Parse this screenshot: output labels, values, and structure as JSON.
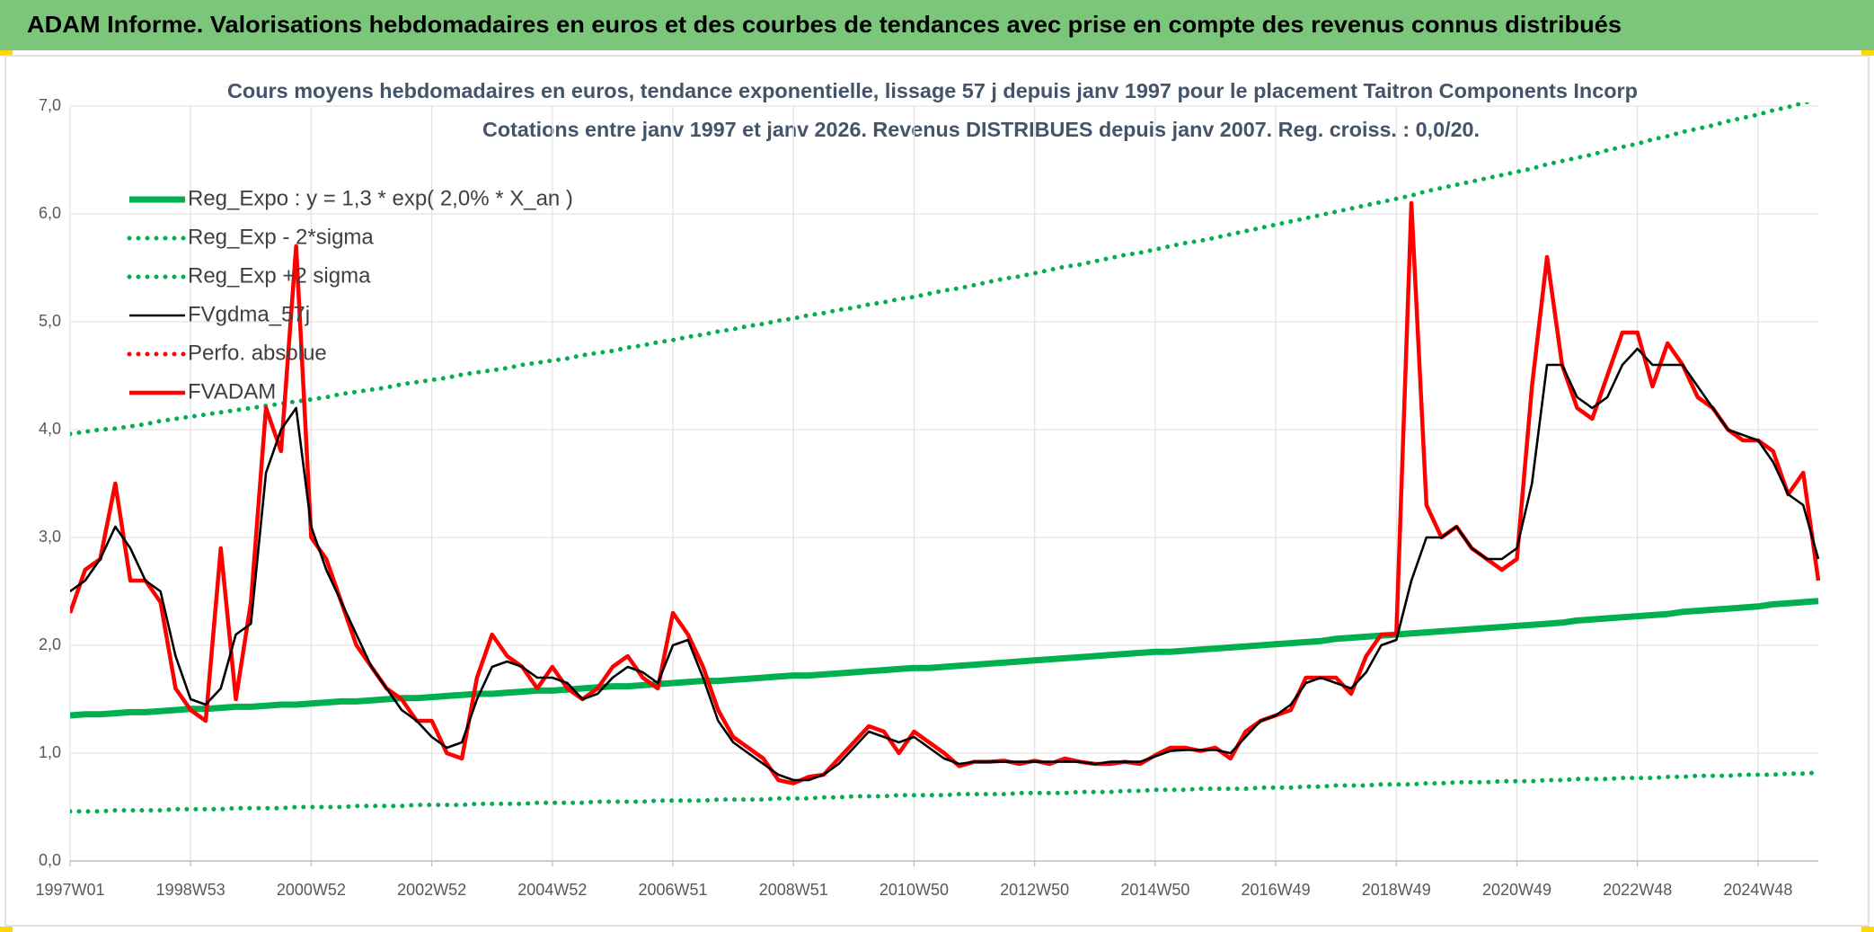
{
  "header": {
    "title": "ADAM Informe. Valorisations hebdomadaires en euros et des courbes de tendances avec prise en compte des revenus connus distribués"
  },
  "chart_data": {
    "type": "line",
    "title": "Cours moyens hebdomadaires en euros, tendance exponentielle, lissage 57 j depuis janv 1997 pour le placement Taitron Components Incorp",
    "subtitle": "Cotations entre janv 1997 et janv 2026. Revenus DISTRIBUES depuis janv 2007. Reg. croiss. : 0,0/20.",
    "grid": true,
    "legend": "upper left",
    "ylim": [
      0,
      7
    ],
    "yticks": [
      {
        "value": 0,
        "label": "0,0"
      },
      {
        "value": 1,
        "label": "1,0"
      },
      {
        "value": 2,
        "label": "2,0"
      },
      {
        "value": 3,
        "label": "3,0"
      },
      {
        "value": 4,
        "label": "4,0"
      },
      {
        "value": 5,
        "label": "5,0"
      },
      {
        "value": 6,
        "label": "6,0"
      },
      {
        "value": 7,
        "label": "7,0"
      }
    ],
    "categories": [
      "1997W01",
      null,
      null,
      null,
      null,
      null,
      null,
      null,
      "1998W53",
      null,
      null,
      null,
      null,
      null,
      null,
      null,
      "2000W52",
      null,
      null,
      null,
      null,
      null,
      null,
      null,
      "2002W52",
      null,
      null,
      null,
      null,
      null,
      null,
      null,
      "2004W52",
      null,
      null,
      null,
      null,
      null,
      null,
      null,
      "2006W51",
      null,
      null,
      null,
      null,
      null,
      null,
      null,
      "2008W51",
      null,
      null,
      null,
      null,
      null,
      null,
      null,
      "2010W50",
      null,
      null,
      null,
      null,
      null,
      null,
      null,
      "2012W50",
      null,
      null,
      null,
      null,
      null,
      null,
      null,
      "2014W50",
      null,
      null,
      null,
      null,
      null,
      null,
      null,
      "2016W49",
      null,
      null,
      null,
      null,
      null,
      null,
      null,
      "2018W49",
      null,
      null,
      null,
      null,
      null,
      null,
      null,
      "2020W49",
      null,
      null,
      null,
      null,
      null,
      null,
      null,
      "2022W48",
      null,
      null,
      null,
      null,
      null,
      null,
      null,
      "2024W48",
      null,
      null,
      null,
      null
    ],
    "series": [
      {
        "name": "Reg_Expo : y = 1,3 * exp( 2,0% *  X_an )",
        "color": "#00b050",
        "style": "solid",
        "values": [
          1.35,
          1.36,
          1.36,
          1.37,
          1.38,
          1.38,
          1.39,
          1.4,
          1.41,
          1.41,
          1.42,
          1.43,
          1.43,
          1.44,
          1.45,
          1.45,
          1.46,
          1.47,
          1.48,
          1.48,
          1.49,
          1.5,
          1.51,
          1.51,
          1.52,
          1.53,
          1.54,
          1.55,
          1.55,
          1.56,
          1.57,
          1.58,
          1.58,
          1.59,
          1.6,
          1.61,
          1.62,
          1.62,
          1.63,
          1.64,
          1.65,
          1.66,
          1.67,
          1.67,
          1.68,
          1.69,
          1.7,
          1.71,
          1.72,
          1.72,
          1.73,
          1.74,
          1.75,
          1.76,
          1.77,
          1.78,
          1.79,
          1.79,
          1.8,
          1.81,
          1.82,
          1.83,
          1.84,
          1.85,
          1.86,
          1.87,
          1.88,
          1.89,
          1.9,
          1.91,
          1.92,
          1.93,
          1.94,
          1.94,
          1.95,
          1.96,
          1.97,
          1.98,
          1.99,
          2.0,
          2.01,
          2.02,
          2.03,
          2.04,
          2.06,
          2.07,
          2.08,
          2.09,
          2.1,
          2.11,
          2.12,
          2.13,
          2.14,
          2.15,
          2.16,
          2.17,
          2.18,
          2.19,
          2.2,
          2.21,
          2.23,
          2.24,
          2.25,
          2.26,
          2.27,
          2.28,
          2.29,
          2.31,
          2.32,
          2.33,
          2.34,
          2.35,
          2.36,
          2.38,
          2.39,
          2.4,
          2.41
        ]
      },
      {
        "name": "Reg_Exp - 2*sigma",
        "color": "#00b050",
        "style": "dotted",
        "values": [
          0.46,
          0.46,
          0.46,
          0.47,
          0.47,
          0.47,
          0.47,
          0.48,
          0.48,
          0.48,
          0.48,
          0.49,
          0.49,
          0.49,
          0.49,
          0.5,
          0.5,
          0.5,
          0.5,
          0.51,
          0.51,
          0.51,
          0.51,
          0.52,
          0.52,
          0.52,
          0.52,
          0.53,
          0.53,
          0.53,
          0.53,
          0.54,
          0.54,
          0.54,
          0.54,
          0.55,
          0.55,
          0.55,
          0.55,
          0.56,
          0.56,
          0.56,
          0.56,
          0.57,
          0.57,
          0.57,
          0.57,
          0.58,
          0.58,
          0.58,
          0.59,
          0.59,
          0.6,
          0.6,
          0.6,
          0.61,
          0.61,
          0.61,
          0.61,
          0.62,
          0.62,
          0.62,
          0.62,
          0.63,
          0.63,
          0.63,
          0.63,
          0.64,
          0.64,
          0.64,
          0.65,
          0.65,
          0.66,
          0.66,
          0.66,
          0.67,
          0.67,
          0.67,
          0.67,
          0.68,
          0.68,
          0.68,
          0.69,
          0.69,
          0.7,
          0.7,
          0.7,
          0.71,
          0.71,
          0.71,
          0.72,
          0.72,
          0.73,
          0.73,
          0.73,
          0.74,
          0.74,
          0.74,
          0.75,
          0.75,
          0.76,
          0.76,
          0.76,
          0.77,
          0.77,
          0.77,
          0.78,
          0.78,
          0.79,
          0.79,
          0.79,
          0.8,
          0.8,
          0.8,
          0.81,
          0.81,
          0.82
        ]
      },
      {
        "name": "Reg_Exp +2 sigma",
        "color": "#00b050",
        "style": "dotted",
        "values": [
          3.96,
          3.98,
          4.0,
          4.01,
          4.03,
          4.05,
          4.08,
          4.1,
          4.12,
          4.14,
          4.16,
          4.18,
          4.2,
          4.22,
          4.24,
          4.26,
          4.28,
          4.3,
          4.33,
          4.35,
          4.37,
          4.39,
          4.42,
          4.44,
          4.46,
          4.48,
          4.51,
          4.53,
          4.55,
          4.57,
          4.6,
          4.62,
          4.64,
          4.66,
          4.69,
          4.71,
          4.73,
          4.76,
          4.78,
          4.81,
          4.83,
          4.86,
          4.88,
          4.91,
          4.93,
          4.96,
          4.98,
          5.01,
          5.03,
          5.06,
          5.08,
          5.11,
          5.13,
          5.16,
          5.18,
          5.21,
          5.23,
          5.26,
          5.29,
          5.31,
          5.34,
          5.37,
          5.4,
          5.42,
          5.45,
          5.48,
          5.51,
          5.53,
          5.56,
          5.59,
          5.62,
          5.64,
          5.67,
          5.7,
          5.73,
          5.75,
          5.78,
          5.81,
          5.84,
          5.87,
          5.9,
          5.93,
          5.96,
          5.99,
          6.02,
          6.05,
          6.08,
          6.11,
          6.14,
          6.17,
          6.21,
          6.24,
          6.27,
          6.3,
          6.33,
          6.36,
          6.39,
          6.42,
          6.46,
          6.49,
          6.52,
          6.55,
          6.59,
          6.62,
          6.65,
          6.69,
          6.72,
          6.76,
          6.79,
          6.82,
          6.86,
          6.89,
          6.92,
          6.96,
          6.99,
          7.03,
          7.06
        ]
      },
      {
        "name": "FVgdma_57j",
        "color": "#000000",
        "style": "solid",
        "values": [
          2.5,
          2.6,
          2.8,
          3.1,
          2.9,
          2.6,
          2.5,
          1.9,
          1.5,
          1.45,
          1.6,
          2.1,
          2.2,
          3.6,
          4.0,
          4.2,
          3.1,
          2.7,
          2.4,
          2.1,
          1.8,
          1.6,
          1.4,
          1.3,
          1.15,
          1.05,
          1.1,
          1.5,
          1.8,
          1.85,
          1.8,
          1.7,
          1.7,
          1.65,
          1.5,
          1.55,
          1.7,
          1.8,
          1.75,
          1.65,
          2.0,
          2.05,
          1.7,
          1.3,
          1.1,
          1.0,
          0.9,
          0.8,
          0.75,
          0.75,
          0.8,
          0.9,
          1.05,
          1.2,
          1.15,
          1.1,
          1.15,
          1.05,
          0.95,
          0.9,
          0.92,
          0.92,
          0.92,
          0.92,
          0.92,
          0.92,
          0.92,
          0.92,
          0.9,
          0.92,
          0.92,
          0.92,
          0.97,
          1.02,
          1.03,
          1.03,
          1.03,
          1.0,
          1.15,
          1.3,
          1.35,
          1.45,
          1.65,
          1.7,
          1.65,
          1.6,
          1.75,
          2.0,
          2.05,
          2.6,
          3.0,
          3.0,
          3.1,
          2.9,
          2.8,
          2.8,
          2.9,
          3.5,
          4.6,
          4.6,
          4.3,
          4.2,
          4.3,
          4.6,
          4.75,
          4.6,
          4.6,
          4.6,
          4.4,
          4.2,
          4.0,
          3.95,
          3.9,
          3.7,
          3.4,
          3.3,
          2.8
        ]
      },
      {
        "name": "Perfo. absolue",
        "color": "#ff0000",
        "style": "dotted",
        "values": [
          null,
          null,
          null,
          null,
          null,
          null,
          null,
          null,
          null,
          null,
          null,
          null,
          null,
          null,
          null,
          null,
          null,
          null,
          null,
          null,
          null,
          null,
          null,
          null,
          null,
          null,
          null,
          null,
          null,
          null,
          null,
          null,
          null,
          null,
          null,
          null,
          null,
          null,
          null,
          null,
          null,
          null,
          null,
          null,
          null,
          null,
          null,
          null,
          null,
          null,
          null,
          null,
          null,
          null,
          null,
          null,
          null,
          null,
          null,
          null,
          null,
          null,
          null,
          null,
          null,
          null,
          null,
          null,
          null,
          null,
          null,
          null,
          null,
          null,
          null,
          null,
          null,
          null,
          null,
          null,
          null,
          null,
          null,
          null,
          null,
          null,
          null,
          null,
          null,
          null,
          null,
          null,
          null,
          null,
          null,
          null,
          null,
          null,
          null,
          null,
          null,
          null,
          null,
          null,
          null,
          null,
          null,
          null,
          null,
          null,
          null,
          null,
          null,
          null,
          null,
          null,
          null
        ]
      },
      {
        "name": "FVADAM",
        "color": "#ff0000",
        "style": "solid",
        "values": [
          2.3,
          2.7,
          2.8,
          3.5,
          2.6,
          2.6,
          2.4,
          1.6,
          1.4,
          1.3,
          2.9,
          1.5,
          2.4,
          4.2,
          3.8,
          5.7,
          3.0,
          2.8,
          2.4,
          2.0,
          1.8,
          1.6,
          1.5,
          1.3,
          1.3,
          1.0,
          0.95,
          1.7,
          2.1,
          1.9,
          1.8,
          1.6,
          1.8,
          1.6,
          1.5,
          1.6,
          1.8,
          1.9,
          1.7,
          1.6,
          2.3,
          2.1,
          1.8,
          1.4,
          1.15,
          1.05,
          0.95,
          0.75,
          0.72,
          0.78,
          0.8,
          0.95,
          1.1,
          1.25,
          1.2,
          1.0,
          1.2,
          1.1,
          1.0,
          0.88,
          0.92,
          0.92,
          0.93,
          0.9,
          0.93,
          0.9,
          0.95,
          0.92,
          0.9,
          0.9,
          0.92,
          0.9,
          0.98,
          1.05,
          1.05,
          1.02,
          1.05,
          0.95,
          1.2,
          1.3,
          1.35,
          1.4,
          1.7,
          1.7,
          1.7,
          1.55,
          1.9,
          2.1,
          2.1,
          6.1,
          3.3,
          3.0,
          3.1,
          2.9,
          2.8,
          2.7,
          2.8,
          4.4,
          5.6,
          4.6,
          4.2,
          4.1,
          4.5,
          4.9,
          4.9,
          4.4,
          4.8,
          4.6,
          4.3,
          4.2,
          4.0,
          3.9,
          3.9,
          3.8,
          3.4,
          3.6,
          2.6
        ]
      }
    ]
  }
}
